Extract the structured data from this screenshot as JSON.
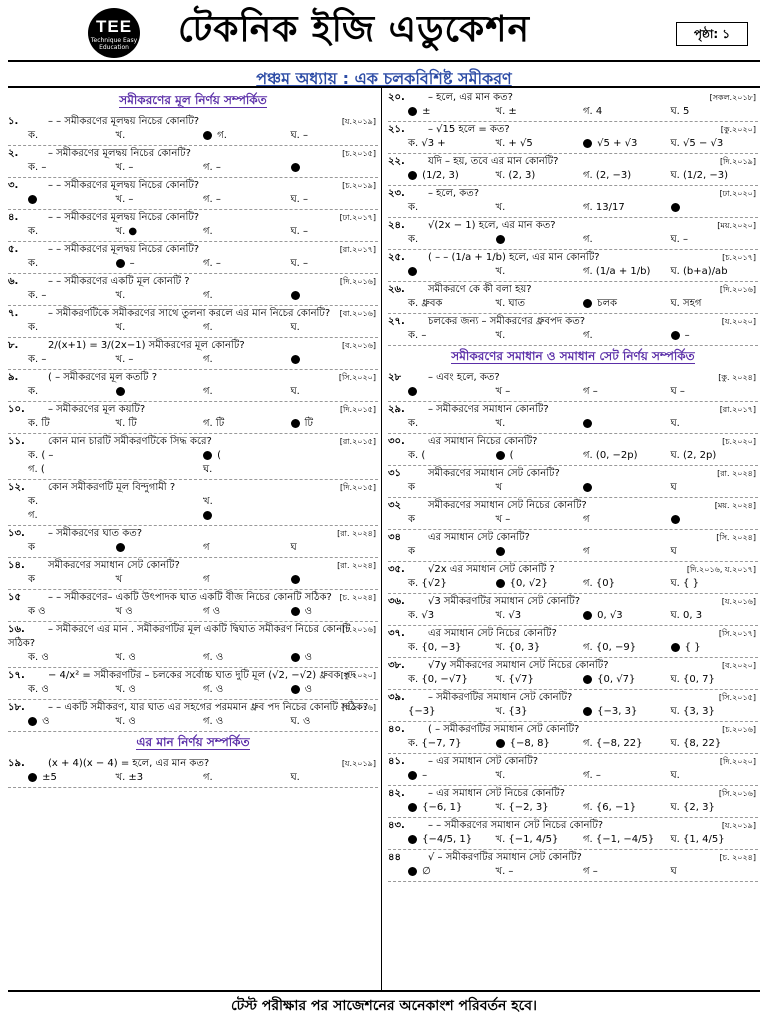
{
  "header": {
    "logo_text": "TEE",
    "logo_sub": "Technique Easy Education",
    "title": "টেকনিক ইজি এডুকেশন",
    "page_label": "পৃষ্ঠা: ১"
  },
  "chapter_title": "পঞ্চম অধ্যায় : এক চলকবিশিষ্ট সমীকরণ",
  "left": [
    {
      "type": "sec",
      "text": "সমীকরণের মূল নির্ণয় সম্পর্কিত"
    },
    {
      "n": "১.",
      "t": "–   –   সমীকরণের মূলদ্বয় নিচের কোনটি?",
      "src": "[য.২০১৯]",
      "opts": [
        "ক.",
        "খ.",
        "● গ.",
        "ঘ. –"
      ]
    },
    {
      "n": "২.",
      "t": "–   সমীকরণের মূলদ্বয় নিচের কোনটি?",
      "src": "[চ.২০১৫]",
      "opts": [
        "ক. –",
        "খ. –",
        "গ. –",
        "●"
      ]
    },
    {
      "n": "৩.",
      "t": "–  –   সমীকরণের মূলদ্বয় নিচের কোনটি?",
      "src": "[চ.২০১৯]",
      "opts": [
        "●",
        "খ. –",
        "গ. –",
        "ঘ. –"
      ]
    },
    {
      "n": "৪.",
      "t": "–  –   সমীকরণের মূলদ্বয় নিচের কোনটি?",
      "src": "[ঢা.২০১৭]",
      "opts": [
        "ক.",
        "খ. ●",
        "গ.",
        "ঘ. –"
      ]
    },
    {
      "n": "৫.",
      "t": "–  –   সমীকরণের মূলদ্বয় নিচের কোনটি?",
      "src": "[রা.২০১৭]",
      "opts": [
        "ক.",
        "● –",
        "গ. –",
        "ঘ. –"
      ]
    },
    {
      "n": "৬.",
      "t": "–  –   সমীকরণের একটি মূল কোনটি ?",
      "src": "[দি.২০১৬]",
      "opts": [
        "ক. –",
        "খ.",
        "গ.",
        "●"
      ]
    },
    {
      "n": "৭.",
      "t": "– সমীকরণটিকে   সমীকরণের সাথে তুলনা করলে   এর মান নিচের কোনটি?",
      "src": "[বা.২০১৬]",
      "opts": [
        "ক.",
        "খ.",
        "গ.",
        "ঘ."
      ]
    },
    {
      "n": "৮.",
      "t": "2/(x+1) = 3/(2x−1) সমীকরণের মূল কোনটি?",
      "src": "[ব.২০১৬]",
      "opts": [
        "ক. –",
        "খ. –",
        "গ.",
        "●"
      ]
    },
    {
      "n": "৯.",
      "t": "(  –   সমীকরণের মূল কতটি ?",
      "src": "[সি.২০২০]",
      "opts": [
        "ক.",
        "●",
        "গ.",
        "ঘ."
      ]
    },
    {
      "n": "১০.",
      "t": "–   সমীকরণের মূল কয়টি?",
      "src": "[দি.২০১৫]",
      "opts": [
        "ক. টি",
        "খ. টি",
        "গ. টি",
        "● টি"
      ]
    },
    {
      "n": "১১.",
      "t": "কোন মান চারটি   সমীকরণটিকে সিদ্ধ করে?",
      "src": "[রা.২০১৫]",
      "cls": "two",
      "opts": [
        "ক. (  –",
        "● (",
        "গ. (",
        "ঘ."
      ]
    },
    {
      "n": "১২.",
      "t": "কোন সমীকরণটি মূল বিন্দুগামী ?",
      "src": "[দি.২০১৫]",
      "cls": "two",
      "opts": [
        "ক.",
        "খ.",
        "গ.",
        "●"
      ]
    },
    {
      "n": "১৩.",
      "t": "–   সমীকরণের ঘাত কত?",
      "src": "[রা. ২০২৪]",
      "opts": [
        "ক",
        "●",
        "গ",
        "ঘ"
      ]
    },
    {
      "n": "১৪.",
      "t": "সমীকরণের সমাধান সেট কোনটি?",
      "src": "[রা. ২০২৪]",
      "opts": [
        "ক",
        "খ",
        "গ",
        "●"
      ]
    },
    {
      "n": "১৫",
      "t": "–  –   সমীকরণের– একটি উৎপাদক   ঘাত   একটি বীজ নিচের কোনটি সঠিক?",
      "src": "[চ. ২০২৪]",
      "opts": [
        "ক  ও",
        "খ  ও",
        "গ  ও",
        "●  ও"
      ]
    },
    {
      "n": "১৬.",
      "t": "–   সমীকরণে   এর মান   . সমীকরণটির মূল   একটি দ্বিঘাত সমীকরণ নিচের কোনটি সঠিক?",
      "src": "[চ.২০১৬]",
      "opts": [
        "ক.  ও",
        "খ.  ও",
        "গ.  ও",
        "●  ও"
      ]
    },
    {
      "n": "১৭.",
      "t": "− 4/x² =   সমীকরণটির – চলকের সর্বোচ্চ ঘাত   দুটি মূল (√2, −√2) ধ্রুবক পদ",
      "src": "[কু.২০২০]",
      "opts": [
        "ক.  ও",
        "খ.  ও",
        "গ.  ও",
        "●  ও"
      ]
    },
    {
      "n": "১৮.",
      "t": "–  –   একটি সমীকরণ, যার ঘাত   এর সহগের পরমমান   ধ্রুব পদ নিচের কোনটি সঠিক?",
      "src": "[ব.২০১৬]",
      "opts": [
        "●  ও",
        "খ.  ও",
        "গ.  ও",
        "ঘ.  ও"
      ]
    },
    {
      "type": "sec",
      "text": "এর মান নির্ণয় সম্পর্কিত"
    },
    {
      "n": "১৯.",
      "t": "(x + 4)(x − 4) =   হলে,   এর মান কত?",
      "src": "[য.২০১৯]",
      "opts": [
        "● ±5",
        "খ. ±3",
        "গ.",
        "ঘ."
      ]
    }
  ],
  "right": [
    {
      "n": "২০.",
      "t": "–   হলে,   এর মান কত?",
      "src": "[সকল.২০১৮]",
      "opts": [
        "● ±",
        "খ. ±",
        "গ. 4",
        "ঘ. 5"
      ]
    },
    {
      "n": "২১.",
      "t": "–   √15 হলে   = কত?",
      "src": "[কু.২০২০]",
      "opts": [
        "ক. √3 +",
        "খ.  + √5",
        "● √5 + √3",
        "ঘ. √5 − √3"
      ]
    },
    {
      "n": "২২.",
      "t": "যদি   –   হয়, তবে   এর মান কোনটি?",
      "src": "[দি.২০১৯]",
      "opts": [
        "● (1/2, 3)",
        "খ. (2, 3)",
        "গ. (2, −3)",
        "ঘ. (1/2, −3)"
      ]
    },
    {
      "n": "২৩.",
      "t": "–   হলে,   কত?",
      "src": "[ঢা.২০২০]",
      "opts": [
        "ক.",
        "খ.",
        "গ. 13/17",
        "●"
      ]
    },
    {
      "n": "২৪.",
      "t": "√(2x − 1) হলে,   এর মান কত?",
      "src": "[ময়.২০২০]",
      "opts": [
        "ক.",
        "●",
        "গ.",
        "ঘ. –"
      ]
    },
    {
      "n": "২৫.",
      "t": "(  –  –  (1/a + 1/b)   হলে,   এর মান কোনটি?",
      "src": "[চ.২০১৭]",
      "opts": [
        "●",
        "খ.",
        "গ. (1/a + 1/b)",
        "ঘ. (b+a)/ab"
      ]
    },
    {
      "n": "২৬.",
      "t": "সমীকরণে   কে কী বলা হয়?",
      "src": "[দি.২০১৬]",
      "opts": [
        "ক. ধ্রুবক",
        "খ. ঘাত",
        "● চলক",
        "ঘ. সহগ"
      ]
    },
    {
      "n": "২৭.",
      "t": "চলকের জন্য   –   সমীকরণের ধ্রুবপদ কত?",
      "src": "[য.২০২০]",
      "opts": [
        "ক. –",
        "খ.",
        "গ.",
        "● –"
      ]
    },
    {
      "type": "sec",
      "text": "সমীকরণের সমাধান ও সমাধান সেট নির্ণয় সম্পর্কিত"
    },
    {
      "n": "২৮",
      "t": "–   এবং   হলে,   কত?",
      "src": "[কু. ২০২৪]",
      "opts": [
        "●",
        "খ –",
        "গ –",
        "ঘ –"
      ]
    },
    {
      "n": "২৯.",
      "t": "–   সমীকরণের সমাধান কোনটি?",
      "src": "[রা.২০১৭]",
      "opts": [
        "ক.",
        "খ.",
        "●",
        "ঘ."
      ]
    },
    {
      "n": "৩০.",
      "t": "এর সমাধান নিচের কোনটি?",
      "src": "[চ.২০২০]",
      "opts": [
        "ক. (",
        "● (",
        "গ. (0, −2p)",
        "ঘ. (2, 2p)"
      ]
    },
    {
      "n": "৩১",
      "t": "সমীকরণের সমাধান সেট কোনটি?",
      "src": "[রা. ২০২৪]",
      "opts": [
        "ক",
        "খ",
        "●",
        "ঘ"
      ]
    },
    {
      "n": "৩২",
      "t": "সমীকরণের সমাধান সেট নিচের কোনটি?",
      "src": "[ময়. ২০২৪]",
      "opts": [
        "ক",
        "খ –",
        "গ",
        "●"
      ]
    },
    {
      "n": "৩৪",
      "t": "এর সমাধান সেট কোনটি?",
      "src": "[সি. ২০২৪]",
      "opts": [
        "ক",
        "●",
        "গ",
        "ঘ"
      ]
    },
    {
      "n": "৩৫.",
      "t": "√2x এর সমাধান সেট কোনটি ?",
      "src": "[দি.২০১৬, য.২০১৭]",
      "opts": [
        "ক. {√2}",
        "● {0, √2}",
        "গ. {0}",
        "ঘ. { }"
      ]
    },
    {
      "n": "৩৬.",
      "t": "√3   সমীকরণটির সমাধান সেট কোনটি?",
      "src": "[য.২০১৬]",
      "opts": [
        "ক. √3",
        "খ. √3",
        "● 0, √3",
        "ঘ. 0, 3"
      ]
    },
    {
      "n": "৩৭.",
      "t": "এর সমাধান সেট নিচের কোনটি?",
      "src": "[সি.২০১৭]",
      "opts": [
        "ক. {0, −3}",
        "খ. {0, 3}",
        "গ. {0, −9}",
        "● {   }"
      ]
    },
    {
      "n": "৩৮.",
      "t": "√7y সমীকরণের সমাধান সেট নিচের কোনটি?",
      "src": "[ব.২০২০]",
      "opts": [
        "ক. {0, −√7}",
        "খ. {√7}",
        "● {0, √7}",
        "ঘ. {0, 7}"
      ]
    },
    {
      "n": "৩৯.",
      "t": "–   সমীকরণটির সমাধান সেট কোনটি?",
      "src": "[সি.২০১৫]",
      "opts": [
        "{−3}",
        "খ. {3}",
        "● {−3, 3}",
        "ঘ. {3, 3}"
      ]
    },
    {
      "n": "৪০.",
      "t": "(  –   সমীকরণটির সমাধান সেট কোনটি?",
      "src": "[চ.২০১৬]",
      "opts": [
        "ক. {−7, 7}",
        "● {−8, 8}",
        "গ. {−8, 22}",
        "ঘ. {8, 22}"
      ]
    },
    {
      "n": "৪১.",
      "t": "–   এর সমাধান সেট কোনটি?",
      "src": "[দি.২০২০]",
      "opts": [
        "● –",
        "খ.",
        "গ. –",
        "ঘ."
      ]
    },
    {
      "n": "৪২.",
      "t": "–   এর সমাধান সেট নিচের কোনটি?",
      "src": "[সি.২০১৬]",
      "opts": [
        "● {−6, 1}",
        "খ. {−2, 3}",
        "গ. {6, −1}",
        "ঘ. {2, 3}"
      ]
    },
    {
      "n": "৪৩.",
      "t": "–  –   সমীকরণের সমাধান সেট নিচের কোনটি?",
      "src": "[য.২০১৯]",
      "opts": [
        "● {−4/5, 1}",
        "খ. {−1, 4/5}",
        "গ. {−1, −4/5}",
        "ঘ. {1, 4/5}"
      ]
    },
    {
      "n": "৪৪",
      "t": "√  –   সমীকরণটির সমাধান সেট কোনটি?",
      "src": "[চ. ২০২৪]",
      "opts": [
        "● ∅",
        "খ. –",
        "গ –",
        "ঘ"
      ]
    }
  ],
  "footer": "টেস্ট পরীক্ষার পর সাজেশনের অনেকাংশ পরিবর্তন হবে।"
}
